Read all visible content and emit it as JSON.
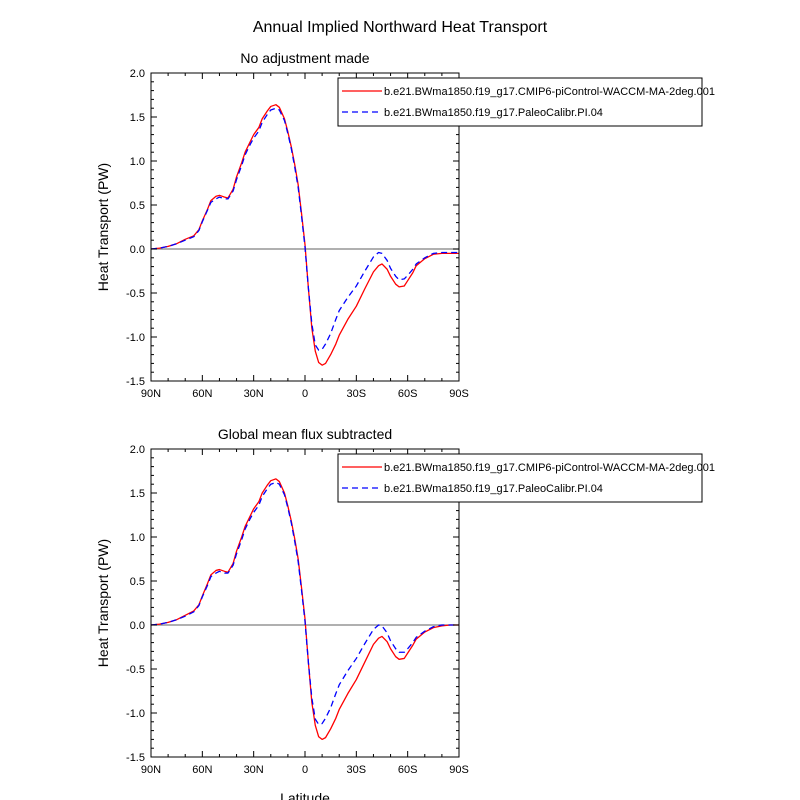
{
  "figure": {
    "title": "Annual Implied Northward Heat Transport"
  },
  "chart_data": [
    {
      "type": "line",
      "title": "No adjustment made",
      "xlabel": "",
      "ylabel": "Heat Transport (PW)",
      "xlim": [
        -90,
        90
      ],
      "ylim": [
        -1.5,
        2.0
      ],
      "x_ticks": [
        -90,
        -60,
        -30,
        0,
        30,
        60,
        90
      ],
      "x_tick_labels": [
        "90N",
        "60N",
        "30N",
        "0",
        "30S",
        "60S",
        "90S"
      ],
      "y_ticks": [
        -1.5,
        -1.0,
        -0.5,
        0.0,
        0.5,
        1.0,
        1.5,
        2.0
      ],
      "y_tick_labels": [
        "-1.5",
        "-1.0",
        "-0.5",
        "0.0",
        "0.5",
        "1.0",
        "1.5",
        "2.0"
      ],
      "zero_line": true,
      "legend_position": "top-right",
      "x": [
        -90,
        -85,
        -80,
        -75,
        -70,
        -65,
        -62,
        -60,
        -57,
        -55,
        -52,
        -50,
        -47,
        -45,
        -42,
        -40,
        -37,
        -35,
        -32,
        -30,
        -27,
        -25,
        -22,
        -20,
        -17,
        -15,
        -12,
        -10,
        -8,
        -6,
        -4,
        -2,
        0,
        2,
        4,
        6,
        8,
        10,
        12,
        15,
        18,
        20,
        25,
        30,
        35,
        40,
        43,
        45,
        48,
        50,
        53,
        55,
        58,
        60,
        63,
        65,
        70,
        75,
        80,
        85,
        90
      ],
      "series": [
        {
          "name": "b.e21.BWma1850.f19_g17.CMIP6-piControl-WACCM-MA-2deg.001",
          "color": "#ff0000",
          "dash": "solid",
          "values": [
            0.0,
            0.01,
            0.03,
            0.06,
            0.11,
            0.15,
            0.22,
            0.32,
            0.45,
            0.55,
            0.6,
            0.61,
            0.59,
            0.58,
            0.68,
            0.82,
            0.98,
            1.1,
            1.22,
            1.3,
            1.38,
            1.48,
            1.57,
            1.62,
            1.64,
            1.61,
            1.48,
            1.33,
            1.16,
            0.96,
            0.73,
            0.4,
            0.05,
            -0.45,
            -0.9,
            -1.16,
            -1.29,
            -1.32,
            -1.3,
            -1.2,
            -1.08,
            -0.98,
            -0.8,
            -0.65,
            -0.45,
            -0.26,
            -0.19,
            -0.17,
            -0.23,
            -0.31,
            -0.4,
            -0.43,
            -0.42,
            -0.36,
            -0.27,
            -0.19,
            -0.11,
            -0.06,
            -0.05,
            -0.05,
            -0.05
          ]
        },
        {
          "name": "b.e21.BWma1850.f19_g17.PaleoCalibr.PI.04",
          "color": "#0000ff",
          "dash": "dashed",
          "values": [
            0.0,
            0.01,
            0.03,
            0.06,
            0.1,
            0.14,
            0.21,
            0.31,
            0.44,
            0.53,
            0.57,
            0.59,
            0.57,
            0.57,
            0.66,
            0.79,
            0.95,
            1.07,
            1.19,
            1.26,
            1.34,
            1.44,
            1.53,
            1.58,
            1.6,
            1.58,
            1.46,
            1.31,
            1.14,
            0.93,
            0.7,
            0.37,
            0.02,
            -0.45,
            -0.85,
            -1.09,
            -1.15,
            -1.14,
            -1.08,
            -0.96,
            -0.8,
            -0.7,
            -0.55,
            -0.42,
            -0.25,
            -0.09,
            -0.04,
            -0.05,
            -0.13,
            -0.22,
            -0.31,
            -0.35,
            -0.34,
            -0.3,
            -0.23,
            -0.17,
            -0.1,
            -0.05,
            -0.04,
            -0.04,
            -0.04
          ]
        }
      ]
    },
    {
      "type": "line",
      "title": "Global mean flux subtracted",
      "xlabel": "Latitude",
      "ylabel": "Heat Transport (PW)",
      "xlim": [
        -90,
        90
      ],
      "ylim": [
        -1.5,
        2.0
      ],
      "x_ticks": [
        -90,
        -60,
        -30,
        0,
        30,
        60,
        90
      ],
      "x_tick_labels": [
        "90N",
        "60N",
        "30N",
        "0",
        "30S",
        "60S",
        "90S"
      ],
      "y_ticks": [
        -1.5,
        -1.0,
        -0.5,
        0.0,
        0.5,
        1.0,
        1.5,
        2.0
      ],
      "y_tick_labels": [
        "-1.5",
        "-1.0",
        "-0.5",
        "0.0",
        "0.5",
        "1.0",
        "1.5",
        "2.0"
      ],
      "zero_line": true,
      "legend_position": "top-right",
      "x": [
        -90,
        -85,
        -80,
        -75,
        -70,
        -65,
        -62,
        -60,
        -57,
        -55,
        -52,
        -50,
        -47,
        -45,
        -42,
        -40,
        -37,
        -35,
        -32,
        -30,
        -27,
        -25,
        -22,
        -20,
        -17,
        -15,
        -12,
        -10,
        -8,
        -6,
        -4,
        -2,
        0,
        2,
        4,
        6,
        8,
        10,
        12,
        15,
        18,
        20,
        25,
        30,
        35,
        40,
        43,
        45,
        48,
        50,
        53,
        55,
        58,
        60,
        63,
        65,
        70,
        75,
        80,
        85,
        90
      ],
      "series": [
        {
          "name": "b.e21.BWma1850.f19_g17.CMIP6-piControl-WACCM-MA-2deg.001",
          "color": "#ff0000",
          "dash": "solid",
          "values": [
            0.0,
            0.01,
            0.03,
            0.06,
            0.11,
            0.16,
            0.23,
            0.33,
            0.47,
            0.57,
            0.62,
            0.63,
            0.61,
            0.6,
            0.7,
            0.84,
            1.0,
            1.12,
            1.24,
            1.32,
            1.4,
            1.5,
            1.59,
            1.64,
            1.66,
            1.63,
            1.5,
            1.35,
            1.18,
            0.98,
            0.75,
            0.42,
            0.07,
            -0.43,
            -0.88,
            -1.14,
            -1.27,
            -1.3,
            -1.28,
            -1.18,
            -1.06,
            -0.96,
            -0.78,
            -0.62,
            -0.42,
            -0.22,
            -0.15,
            -0.13,
            -0.19,
            -0.27,
            -0.36,
            -0.39,
            -0.38,
            -0.32,
            -0.23,
            -0.16,
            -0.08,
            -0.03,
            -0.01,
            0.0,
            0.0
          ]
        },
        {
          "name": "b.e21.BWma1850.f19_g17.PaleoCalibr.PI.04",
          "color": "#0000ff",
          "dash": "dashed",
          "values": [
            0.0,
            0.01,
            0.03,
            0.06,
            0.1,
            0.15,
            0.22,
            0.32,
            0.45,
            0.55,
            0.59,
            0.61,
            0.59,
            0.59,
            0.68,
            0.81,
            0.97,
            1.09,
            1.21,
            1.28,
            1.36,
            1.46,
            1.55,
            1.6,
            1.62,
            1.6,
            1.48,
            1.33,
            1.16,
            0.95,
            0.72,
            0.39,
            0.04,
            -0.43,
            -0.83,
            -1.07,
            -1.13,
            -1.12,
            -1.06,
            -0.94,
            -0.78,
            -0.68,
            -0.52,
            -0.38,
            -0.21,
            -0.05,
            0.0,
            -0.01,
            -0.09,
            -0.18,
            -0.27,
            -0.31,
            -0.31,
            -0.27,
            -0.2,
            -0.14,
            -0.07,
            -0.02,
            0.0,
            0.0,
            0.0
          ]
        }
      ]
    }
  ]
}
